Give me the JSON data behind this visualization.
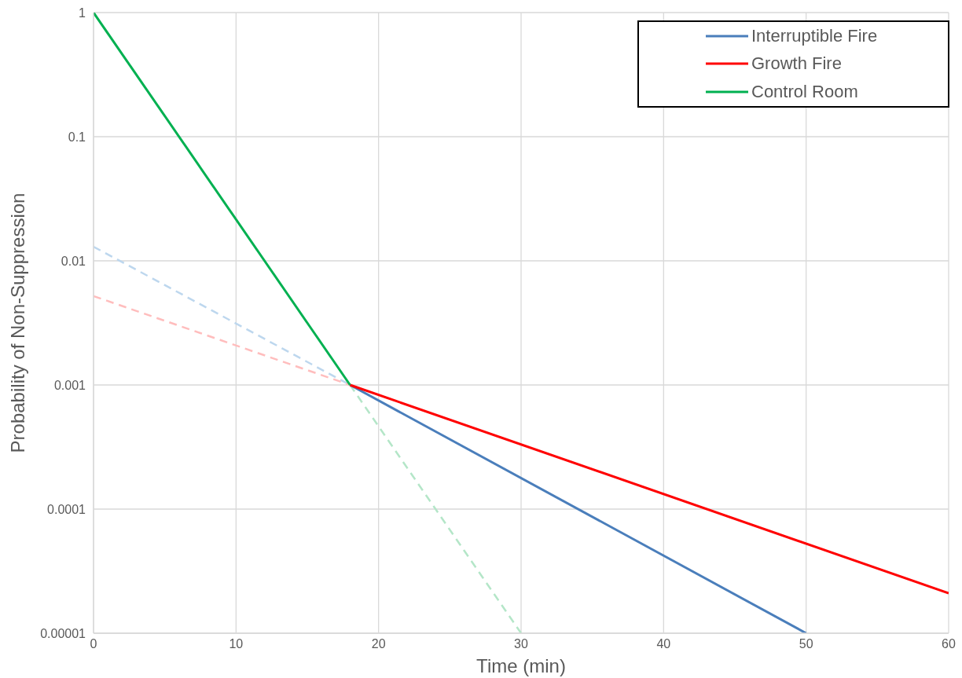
{
  "chart_data": {
    "type": "line",
    "xlabel": "Time (min)",
    "ylabel": "Probability of Non-Suppression",
    "xlim": [
      0,
      60
    ],
    "xticks": [
      0,
      10,
      20,
      30,
      40,
      50,
      60
    ],
    "ylim": [
      1e-05,
      1
    ],
    "yticks": [
      {
        "value": 1e-05,
        "label": "0.00001"
      },
      0.0001,
      0.001,
      0.01,
      0.1,
      1
    ],
    "log": "y",
    "grid": true,
    "legend": "top right",
    "series": [
      {
        "color": "#bdd7ee",
        "line_style": "dashed",
        "x": [
          0,
          18
        ],
        "values": [
          0.013,
          0.001
        ]
      },
      {
        "color": "#ffbdbd",
        "line_style": "dashed",
        "x": [
          0,
          18
        ],
        "values": [
          0.0052,
          0.001
        ]
      },
      {
        "color": "#b4e6c8",
        "line_style": "dashed",
        "x": [
          18,
          30
        ],
        "values": [
          0.001,
          1e-05
        ]
      },
      {
        "name": "Interruptible Fire",
        "color": "#4a7ebb",
        "x": [
          18,
          50
        ],
        "values": [
          0.001,
          1e-05
        ]
      },
      {
        "name": "Growth Fire",
        "color": "#ff0000",
        "x": [
          18,
          60
        ],
        "values": [
          0.001,
          2.1e-05
        ]
      },
      {
        "name": "Control Room",
        "color": "#00b050",
        "x": [
          0,
          18
        ],
        "values": [
          1,
          0.001
        ]
      }
    ]
  }
}
